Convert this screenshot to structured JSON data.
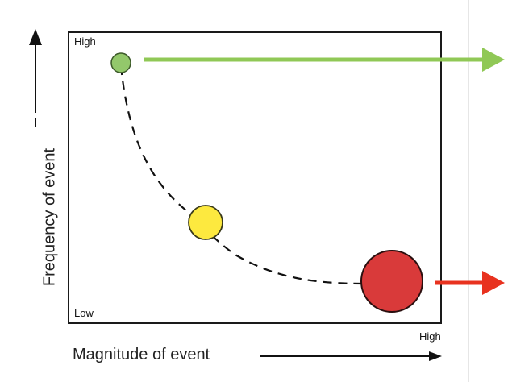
{
  "axes": {
    "y_title": "Frequency of event",
    "x_title": "Magnitude of event",
    "y_high_label": "High",
    "y_low_label": "Low",
    "x_high_label": "High"
  },
  "events": [
    {
      "name": "high-frequency-low-magnitude",
      "color": "#93c86b",
      "stroke": "#3d5a2a"
    },
    {
      "name": "medium",
      "color": "#fde93f",
      "stroke": "#3a3a1a"
    },
    {
      "name": "low-frequency-high-magnitude",
      "color": "#d93a3a",
      "stroke": "#2a0f0f"
    }
  ],
  "arrows": {
    "green_color": "#90c856",
    "red_color": "#e8321f"
  }
}
